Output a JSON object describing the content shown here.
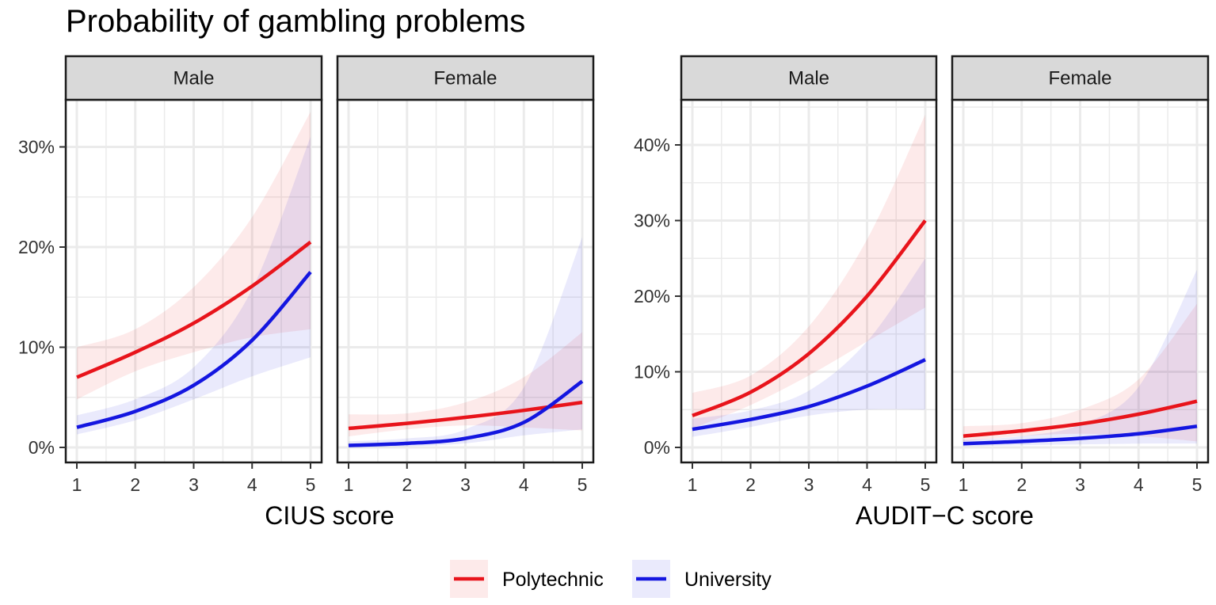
{
  "title": "Probability of gambling problems",
  "colors": {
    "Polytechnic": "#e8141b",
    "University": "#1416e0",
    "strip_bg": "#d9d9d9",
    "grid": "#ebebeb"
  },
  "legend": {
    "placement": "bottom",
    "items": [
      "Polytechnic",
      "University"
    ]
  },
  "chart_data": [
    {
      "type": "line",
      "facet_strip": "Male",
      "xlabel": "CIUS score",
      "x_ticks": [
        "1",
        "2",
        "3",
        "4",
        "5"
      ],
      "y_ticks": [
        "0%",
        "10%",
        "20%",
        "30%"
      ],
      "xlim": [
        1,
        5
      ],
      "ylim": [
        0,
        33
      ],
      "series": [
        {
          "name": "Polytechnic",
          "x": [
            1,
            2,
            3,
            4,
            5
          ],
          "y": [
            7.0,
            9.5,
            12.4,
            16.1,
            20.5
          ],
          "lower": [
            4.8,
            7.6,
            9.5,
            11.0,
            11.8
          ],
          "upper": [
            10.0,
            11.8,
            16.0,
            23.0,
            33.5
          ]
        },
        {
          "name": "University",
          "x": [
            1,
            2,
            3,
            4,
            5
          ],
          "y": [
            2.0,
            3.6,
            6.2,
            10.7,
            17.5
          ],
          "lower": [
            1.3,
            2.7,
            4.8,
            7.1,
            9.0
          ],
          "upper": [
            3.2,
            4.8,
            8.0,
            15.8,
            31.0
          ]
        }
      ],
      "grid": true
    },
    {
      "type": "line",
      "facet_strip": "Female",
      "xlabel": "CIUS score",
      "x_ticks": [
        "1",
        "2",
        "3",
        "4",
        "5"
      ],
      "y_ticks": [
        "0%",
        "10%",
        "20%",
        "30%"
      ],
      "xlim": [
        1,
        5
      ],
      "ylim": [
        0,
        33
      ],
      "series": [
        {
          "name": "Polytechnic",
          "x": [
            1,
            2,
            3,
            4,
            5
          ],
          "y": [
            1.9,
            2.4,
            3.0,
            3.7,
            4.5
          ],
          "lower": [
            1.1,
            1.8,
            2.2,
            2.0,
            1.7
          ],
          "upper": [
            3.3,
            3.4,
            4.5,
            7.0,
            11.5
          ]
        },
        {
          "name": "University",
          "x": [
            1,
            2,
            3,
            4,
            5
          ],
          "y": [
            0.2,
            0.4,
            0.9,
            2.5,
            6.6
          ],
          "lower": [
            0.0,
            0.1,
            0.4,
            1.2,
            1.8
          ],
          "upper": [
            0.6,
            0.9,
            1.8,
            6.0,
            21.0
          ]
        }
      ],
      "grid": true
    },
    {
      "type": "line",
      "facet_strip": "Male",
      "xlabel": "AUDIT−C score",
      "x_ticks": [
        "1",
        "2",
        "3",
        "4",
        "5"
      ],
      "y_ticks": [
        "0%",
        "10%",
        "20%",
        "30%",
        "40%"
      ],
      "xlim": [
        1,
        5
      ],
      "ylim": [
        0,
        44
      ],
      "series": [
        {
          "name": "Polytechnic",
          "x": [
            1,
            2,
            3,
            4,
            5
          ],
          "y": [
            4.2,
            7.3,
            12.4,
            20.0,
            30.0
          ],
          "lower": [
            2.5,
            5.6,
            9.5,
            14.0,
            18.5
          ],
          "upper": [
            7.2,
            9.5,
            16.0,
            27.5,
            44.0
          ]
        },
        {
          "name": "University",
          "x": [
            1,
            2,
            3,
            4,
            5
          ],
          "y": [
            2.4,
            3.7,
            5.4,
            8.1,
            11.6
          ],
          "lower": [
            1.4,
            2.7,
            4.2,
            5.0,
            5.0
          ],
          "upper": [
            3.8,
            4.9,
            7.5,
            14.0,
            25.0
          ]
        }
      ],
      "grid": true
    },
    {
      "type": "line",
      "facet_strip": "Female",
      "xlabel": "AUDIT−C score",
      "x_ticks": [
        "1",
        "2",
        "3",
        "4",
        "5"
      ],
      "y_ticks": [
        "0%",
        "10%",
        "20%",
        "30%",
        "40%"
      ],
      "xlim": [
        1,
        5
      ],
      "ylim": [
        0,
        44
      ],
      "series": [
        {
          "name": "Polytechnic",
          "x": [
            1,
            2,
            3,
            4,
            5
          ],
          "y": [
            1.5,
            2.2,
            3.1,
            4.4,
            6.1
          ],
          "lower": [
            0.8,
            1.5,
            1.8,
            1.5,
            0.8
          ],
          "upper": [
            2.8,
            3.2,
            5.0,
            9.0,
            19.0
          ]
        },
        {
          "name": "University",
          "x": [
            1,
            2,
            3,
            4,
            5
          ],
          "y": [
            0.5,
            0.8,
            1.2,
            1.8,
            2.8
          ],
          "lower": [
            0.1,
            0.3,
            0.4,
            0.5,
            0.5
          ],
          "upper": [
            1.0,
            1.5,
            3.0,
            8.0,
            23.5
          ]
        }
      ],
      "grid": true
    }
  ]
}
